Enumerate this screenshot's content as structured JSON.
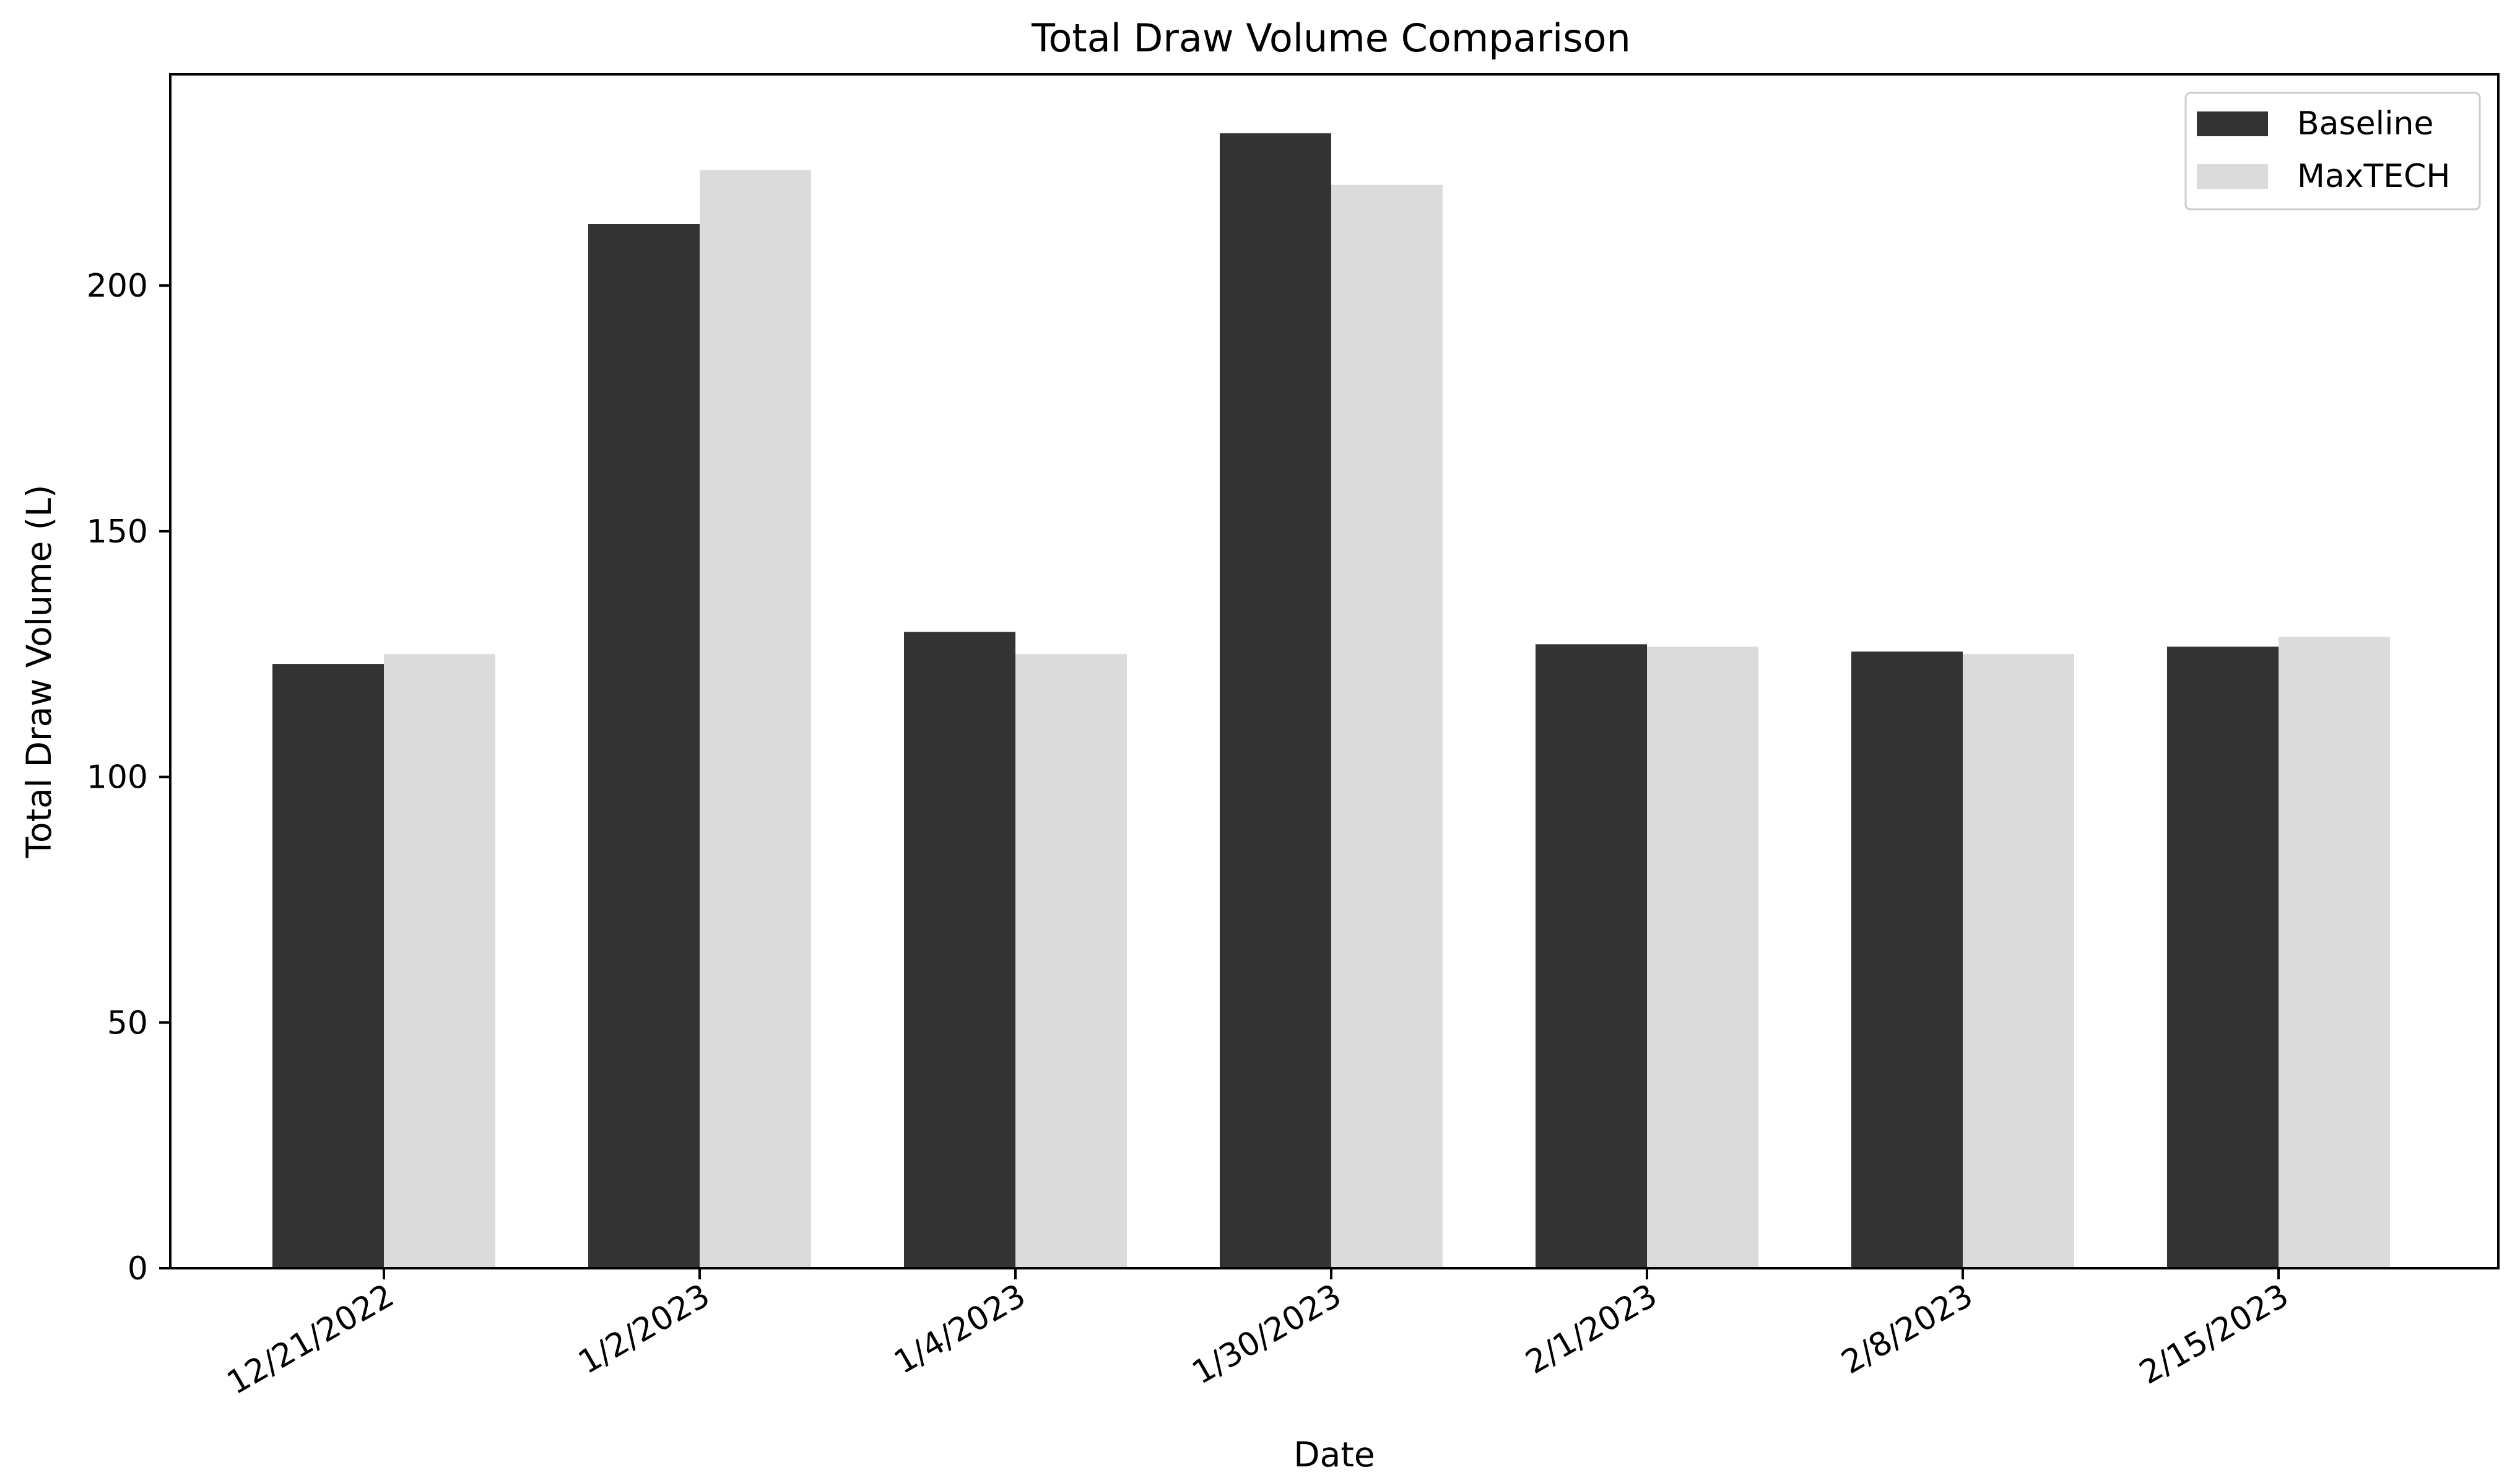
{
  "chart_data": {
    "type": "bar",
    "title": "Total Draw Volume Comparison",
    "xlabel": "Date",
    "ylabel": "Total Draw Volume (L)",
    "categories": [
      "12/21/2022",
      "1/2/2023",
      "1/4/2023",
      "1/30/2023",
      "2/1/2023",
      "2/8/2023",
      "2/15/2023"
    ],
    "series": [
      {
        "name": "Baseline",
        "color": "#333333",
        "values": [
          123,
          212.5,
          129.5,
          231,
          127,
          125.5,
          126.5
        ]
      },
      {
        "name": "MaxTECH",
        "color": "#dbdbdb",
        "values": [
          125,
          223.5,
          125,
          220.5,
          126.5,
          125,
          128.5
        ]
      }
    ],
    "ylim": [
      0,
      243
    ],
    "yticks": [
      0,
      50,
      100,
      150,
      200
    ],
    "legend": "top-right",
    "grid": false
  }
}
